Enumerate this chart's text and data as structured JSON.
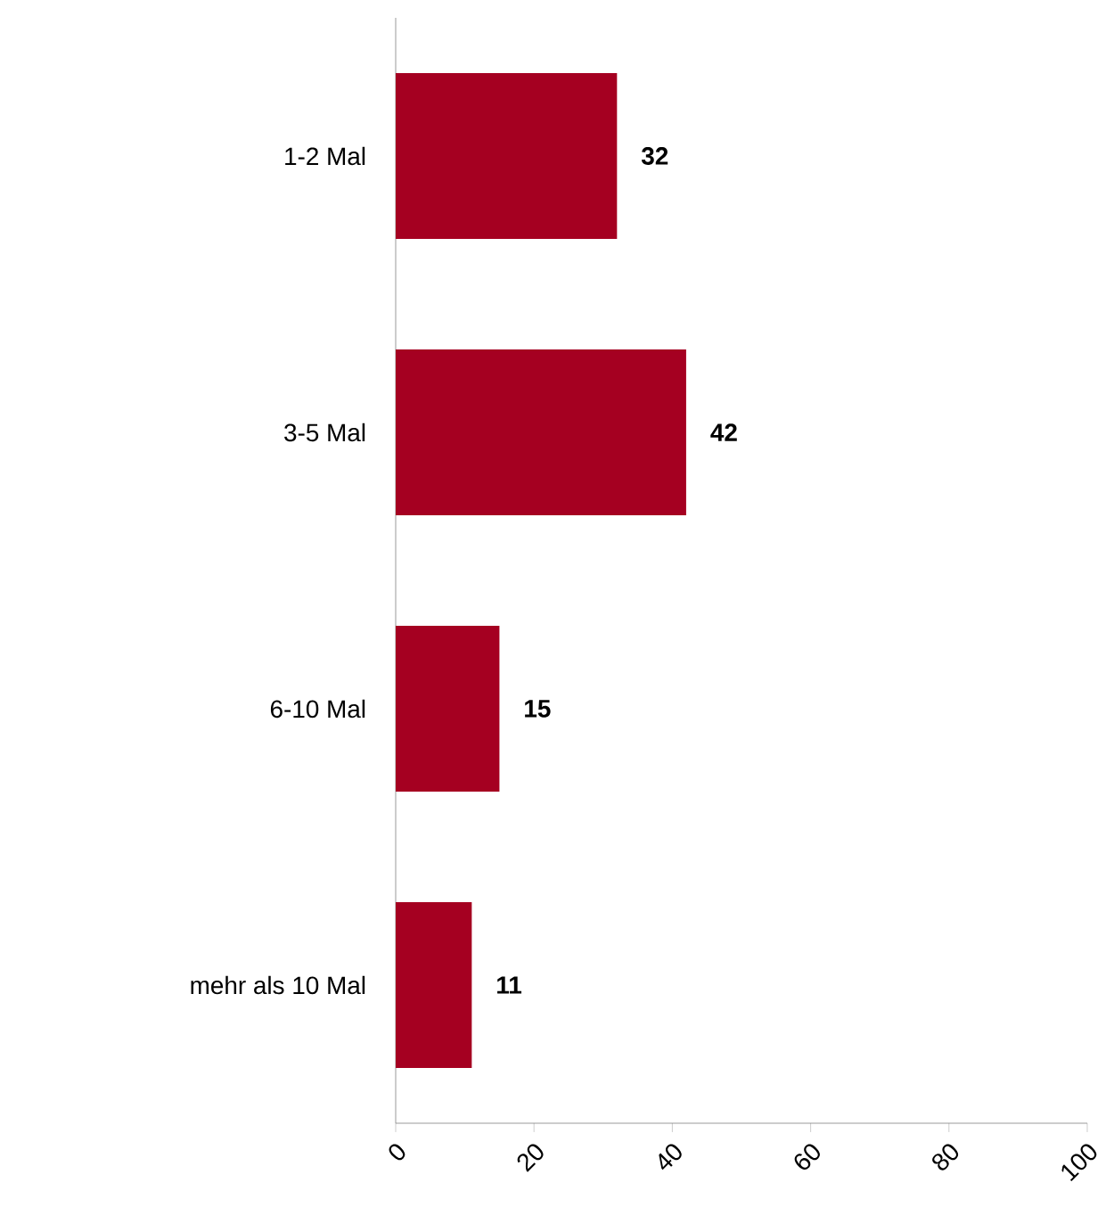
{
  "chart_data": {
    "type": "bar",
    "orientation": "horizontal",
    "categories": [
      "1-2 Mal",
      "3-5 Mal",
      "6-10 Mal",
      "mehr als 10 Mal"
    ],
    "values": [
      32,
      42,
      15,
      11
    ],
    "color": "#a50021",
    "xlim": [
      0,
      100
    ],
    "xticks": [
      0,
      20,
      40,
      60,
      80,
      100
    ],
    "data_labels": true
  }
}
